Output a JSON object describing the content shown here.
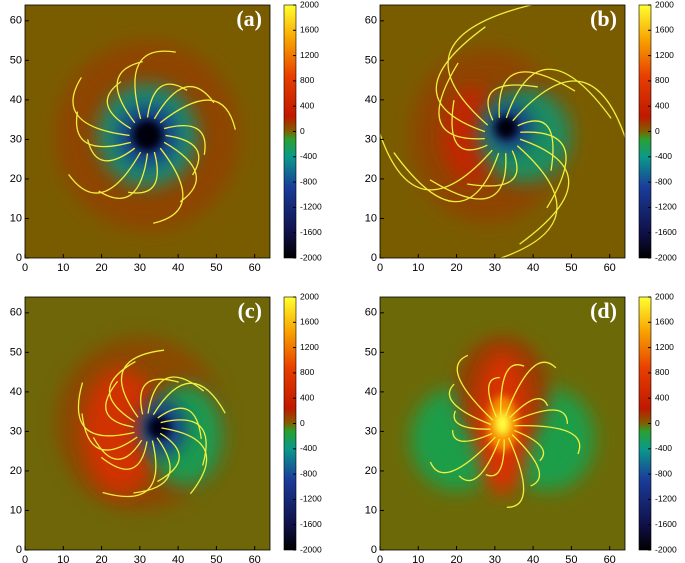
{
  "chart_data": [
    {
      "type": "heatmap",
      "label": "(a)",
      "xlim": [
        0,
        64
      ],
      "ylim": [
        0,
        64
      ],
      "xticks": [
        0,
        10,
        20,
        30,
        40,
        50,
        60
      ],
      "yticks": [
        0,
        10,
        20,
        30,
        40,
        50,
        60
      ],
      "clim": [
        -2000,
        2000
      ],
      "cticks": [
        2000,
        1600,
        1200,
        800,
        400,
        0,
        -400,
        -800,
        -1200,
        -1600,
        -2000
      ]
    },
    {
      "type": "heatmap",
      "label": "(b)",
      "xlim": [
        0,
        64
      ],
      "ylim": [
        0,
        64
      ],
      "xticks": [
        0,
        10,
        20,
        30,
        40,
        50,
        60
      ],
      "yticks": [
        0,
        10,
        20,
        30,
        40,
        50,
        60
      ],
      "clim": [
        -2000,
        2000
      ],
      "cticks": [
        2000,
        1600,
        1200,
        800,
        400,
        0,
        -400,
        -800,
        -1200,
        -1600,
        -2000
      ]
    },
    {
      "type": "heatmap",
      "label": "(c)",
      "xlim": [
        0,
        64
      ],
      "ylim": [
        0,
        64
      ],
      "xticks": [
        0,
        10,
        20,
        30,
        40,
        50,
        60
      ],
      "yticks": [
        0,
        10,
        20,
        30,
        40,
        50,
        60
      ],
      "clim": [
        -2000,
        2000
      ],
      "cticks": [
        2000,
        1600,
        1200,
        800,
        400,
        0,
        -400,
        -800,
        -1200,
        -1600,
        -2000
      ]
    },
    {
      "type": "heatmap",
      "label": "(d)",
      "xlim": [
        0,
        64
      ],
      "ylim": [
        0,
        64
      ],
      "xticks": [
        0,
        10,
        20,
        30,
        40,
        50,
        60
      ],
      "yticks": [
        0,
        10,
        20,
        30,
        40,
        50,
        60
      ],
      "clim": [
        -2000,
        2000
      ],
      "cticks": [
        2000,
        1600,
        1200,
        800,
        400,
        0,
        -400,
        -800,
        -1200,
        -1600,
        -2000
      ]
    }
  ]
}
